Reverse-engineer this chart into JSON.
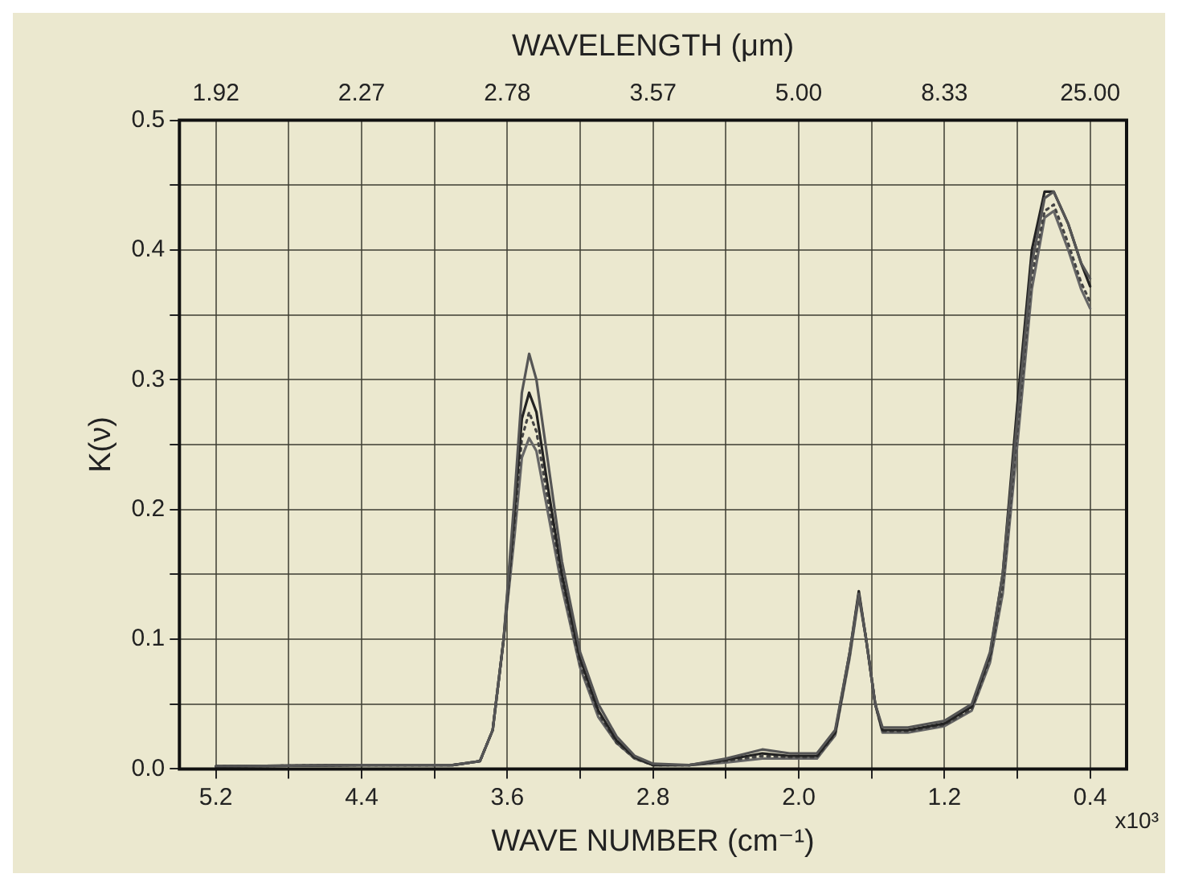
{
  "chart_data": {
    "type": "line",
    "xlabel": "WAVE NUMBER (cm⁻¹)",
    "x2label": "WAVELENGTH (μm)",
    "ylabel": "K(ν)",
    "annotations": [
      "x10³",
      "1.92",
      "2.27",
      "2.78",
      "3.57",
      "5.00",
      "8.33",
      "25.00"
    ],
    "xlim": [
      5.4,
      0.2
    ],
    "xticks": [
      5.2,
      {
        "value": 4.8,
        "label": null
      },
      4.4,
      {
        "value": 4.0,
        "label": null
      },
      3.6,
      {
        "value": 3.2,
        "label": null
      },
      2.8,
      {
        "value": 2.4,
        "label": null
      },
      {
        "value": 2,
        "label": "2.0"
      },
      {
        "value": 1.6,
        "label": null
      },
      1.2,
      {
        "value": 0.8,
        "label": null
      },
      0.4
    ],
    "ylim": [
      0,
      0.5
    ],
    "yticks": [
      {
        "value": 0,
        "label": "0.0"
      },
      {
        "value": 0.05,
        "label": null
      },
      0.1,
      {
        "value": 0.15,
        "label": null
      },
      0.2,
      {
        "value": 0.25,
        "label": null
      },
      0.3,
      {
        "value": 0.35,
        "label": null
      },
      0.4,
      {
        "value": 0.45,
        "label": null
      },
      0.5
    ],
    "grid": true,
    "legend": false,
    "marker": "none",
    "series": [
      {
        "color": "#555555",
        "line_style": "solid",
        "x": [
          5.2,
          4.4,
          3.9,
          3.75,
          3.68,
          3.62,
          3.56,
          3.52,
          3.48,
          3.44,
          3.38,
          3.3,
          3.2,
          3.1,
          3.0,
          2.9,
          2.8,
          2.6,
          2.4,
          2.2,
          2.05,
          1.9,
          1.8,
          1.72,
          1.67,
          1.63,
          1.58,
          1.54,
          1.4,
          1.2,
          1.05,
          0.95,
          0.88,
          0.8,
          0.72,
          0.65,
          0.6,
          0.52,
          0.45,
          0.4
        ],
        "values": [
          0.002,
          0.003,
          0.003,
          0.006,
          0.03,
          0.1,
          0.21,
          0.29,
          0.32,
          0.3,
          0.24,
          0.16,
          0.09,
          0.05,
          0.025,
          0.01,
          0.004,
          0.003,
          0.008,
          0.015,
          0.012,
          0.012,
          0.03,
          0.09,
          0.135,
          0.1,
          0.05,
          0.032,
          0.032,
          0.037,
          0.05,
          0.09,
          0.15,
          0.27,
          0.39,
          0.44,
          0.445,
          0.42,
          0.39,
          0.378
        ]
      },
      {
        "color": "#222222",
        "line_style": "solid",
        "x": [
          5.2,
          4.4,
          3.9,
          3.75,
          3.68,
          3.62,
          3.56,
          3.52,
          3.48,
          3.44,
          3.38,
          3.3,
          3.2,
          3.1,
          3.0,
          2.9,
          2.8,
          2.6,
          2.4,
          2.2,
          2.05,
          1.9,
          1.8,
          1.72,
          1.67,
          1.63,
          1.58,
          1.54,
          1.4,
          1.2,
          1.05,
          0.95,
          0.88,
          0.8,
          0.72,
          0.65,
          0.6,
          0.52,
          0.45,
          0.4
        ],
        "values": [
          0.002,
          0.003,
          0.003,
          0.006,
          0.03,
          0.1,
          0.2,
          0.27,
          0.29,
          0.275,
          0.22,
          0.15,
          0.085,
          0.045,
          0.022,
          0.009,
          0.003,
          0.003,
          0.007,
          0.012,
          0.01,
          0.01,
          0.028,
          0.09,
          0.137,
          0.1,
          0.05,
          0.03,
          0.03,
          0.035,
          0.048,
          0.088,
          0.15,
          0.28,
          0.4,
          0.445,
          0.445,
          0.42,
          0.39,
          0.372
        ]
      },
      {
        "color": "#444444",
        "line_style": "dotted",
        "x": [
          5.2,
          4.4,
          3.9,
          3.75,
          3.68,
          3.62,
          3.56,
          3.52,
          3.48,
          3.44,
          3.38,
          3.3,
          3.2,
          3.1,
          3.0,
          2.9,
          2.8,
          2.6,
          2.4,
          2.2,
          2.05,
          1.9,
          1.8,
          1.72,
          1.67,
          1.63,
          1.58,
          1.54,
          1.4,
          1.2,
          1.05,
          0.95,
          0.88,
          0.8,
          0.72,
          0.65,
          0.6,
          0.52,
          0.45,
          0.4
        ],
        "values": [
          0.002,
          0.003,
          0.003,
          0.006,
          0.03,
          0.1,
          0.19,
          0.255,
          0.275,
          0.26,
          0.21,
          0.145,
          0.08,
          0.043,
          0.02,
          0.008,
          0.003,
          0.003,
          0.006,
          0.01,
          0.009,
          0.009,
          0.027,
          0.088,
          0.135,
          0.1,
          0.05,
          0.029,
          0.029,
          0.034,
          0.046,
          0.085,
          0.14,
          0.26,
          0.38,
          0.43,
          0.435,
          0.405,
          0.375,
          0.36
        ]
      },
      {
        "color": "#666666",
        "line_style": "solid",
        "x": [
          5.2,
          4.4,
          3.9,
          3.75,
          3.68,
          3.62,
          3.56,
          3.52,
          3.48,
          3.44,
          3.38,
          3.3,
          3.2,
          3.1,
          3.0,
          2.9,
          2.8,
          2.6,
          2.4,
          2.2,
          2.05,
          1.9,
          1.8,
          1.72,
          1.67,
          1.63,
          1.58,
          1.54,
          1.4,
          1.2,
          1.05,
          0.95,
          0.88,
          0.8,
          0.72,
          0.65,
          0.6,
          0.52,
          0.45,
          0.4
        ],
        "values": [
          0.002,
          0.003,
          0.003,
          0.006,
          0.03,
          0.1,
          0.18,
          0.24,
          0.255,
          0.245,
          0.2,
          0.14,
          0.078,
          0.04,
          0.02,
          0.008,
          0.003,
          0.003,
          0.005,
          0.008,
          0.008,
          0.008,
          0.026,
          0.086,
          0.133,
          0.1,
          0.05,
          0.028,
          0.028,
          0.033,
          0.045,
          0.082,
          0.135,
          0.25,
          0.37,
          0.425,
          0.43,
          0.4,
          0.37,
          0.355
        ]
      }
    ]
  }
}
